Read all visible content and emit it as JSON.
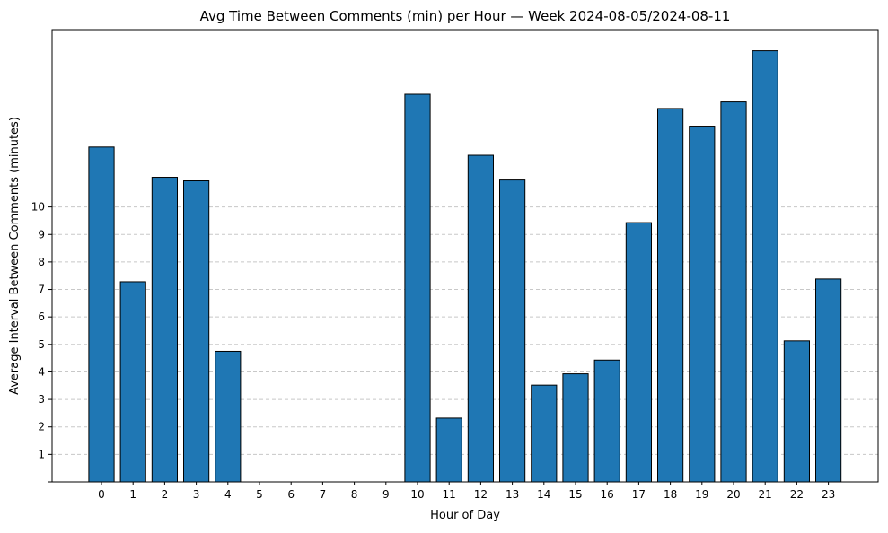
{
  "chart_data": {
    "type": "bar",
    "title": "Avg Time Between Comments (min) per Hour — Week 2024-08-05/2024-08-11",
    "xlabel": "Hour of Day",
    "ylabel": "Average Interval Between Comments (minutes)",
    "categories": [
      "0",
      "1",
      "2",
      "3",
      "4",
      "5",
      "6",
      "7",
      "8",
      "9",
      "10",
      "11",
      "12",
      "13",
      "14",
      "15",
      "16",
      "17",
      "18",
      "19",
      "20",
      "21",
      "22",
      "23"
    ],
    "values": [
      12.18,
      7.28,
      11.08,
      10.95,
      4.75,
      0,
      0,
      0,
      0,
      0,
      14.1,
      2.32,
      11.88,
      10.98,
      3.52,
      3.93,
      4.43,
      9.43,
      13.58,
      12.94,
      13.82,
      15.68,
      5.13,
      7.38
    ],
    "yticks": [
      1,
      2,
      3,
      4,
      5,
      6,
      7,
      8,
      9,
      10
    ],
    "ylim": [
      0,
      16.45
    ],
    "grid": "y-dashed",
    "bar_color": "#1f77b4",
    "edge_color": "#000000",
    "grid_color": "#c8c8c8"
  }
}
